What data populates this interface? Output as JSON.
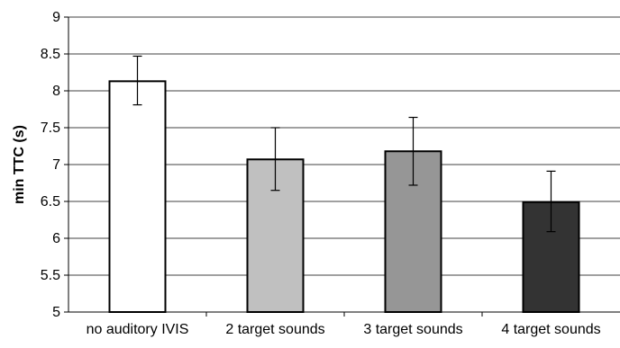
{
  "chart_data": {
    "type": "bar",
    "categories": [
      "no auditory IVIS",
      "2 target sounds",
      "3 target sounds",
      "4 target sounds"
    ],
    "values": [
      8.13,
      7.07,
      7.18,
      6.49
    ],
    "errors": [
      {
        "low": 7.81,
        "high": 8.47
      },
      {
        "low": 6.65,
        "high": 7.5
      },
      {
        "low": 6.72,
        "high": 7.64
      },
      {
        "low": 6.09,
        "high": 6.91
      }
    ],
    "bar_colors": [
      "#ffffff",
      "#c0c0c0",
      "#969696",
      "#333333"
    ],
    "ylabel": "min TTC (s)",
    "xlabel": "",
    "title": "",
    "ylim": [
      5,
      9
    ],
    "yticks": [
      "5",
      "5.5",
      "6",
      "6.5",
      "7",
      "7.5",
      "8",
      "8.5",
      "9"
    ],
    "grid": true,
    "legend": "none"
  }
}
